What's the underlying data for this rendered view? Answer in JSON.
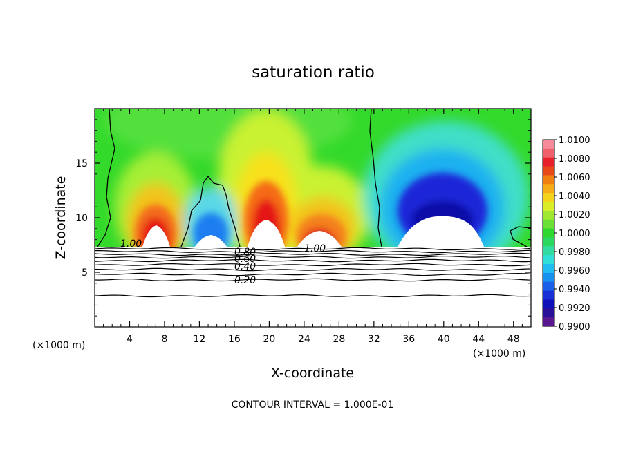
{
  "chart_data": {
    "type": "heatmap",
    "title": "saturation ratio",
    "xlabel": "X-coordinate",
    "ylabel": "Z-coordinate",
    "x_unit_left": "(×1000 m)",
    "x_unit_right": "(×1000 m)",
    "xlim": [
      0,
      50
    ],
    "ylim": [
      0,
      20
    ],
    "x_ticks": [
      "4",
      "8",
      "12",
      "16",
      "20",
      "24",
      "28",
      "32",
      "36",
      "40",
      "44",
      "48"
    ],
    "y_ticks": [
      "5",
      "10",
      "15"
    ],
    "footer": "CONTOUR INTERVAL = 1.000E-01",
    "colorbar": {
      "min": 0.99,
      "max": 1.01,
      "labels": [
        "1.0100",
        "1.0080",
        "1.0060",
        "1.0040",
        "1.0020",
        "1.0000",
        "0.9980",
        "0.9960",
        "0.9940",
        "0.9920",
        "0.9900"
      ]
    },
    "contour_labels": [
      "1.00",
      "1.00",
      "0.80",
      "0.60",
      "0.40",
      "0.20"
    ],
    "regions": [
      {
        "feature": "supersaturated dome",
        "x_center": 7,
        "peak_z": 11.3,
        "peak_value": 1.0095
      },
      {
        "feature": "subsaturated plume",
        "x_center": 13.5,
        "peak_z": 13,
        "peak_value": 0.9935
      },
      {
        "feature": "supersaturated dome",
        "x_center": 19.5,
        "peak_z": 12.5,
        "peak_value": 1.0095
      },
      {
        "feature": "supersaturated dome",
        "x_center": 26,
        "peak_z": 10.5,
        "peak_value": 1.009
      },
      {
        "feature": "subsaturated region",
        "x_center": 39.5,
        "peak_z": 14.5,
        "peak_value": 0.9905
      }
    ]
  }
}
